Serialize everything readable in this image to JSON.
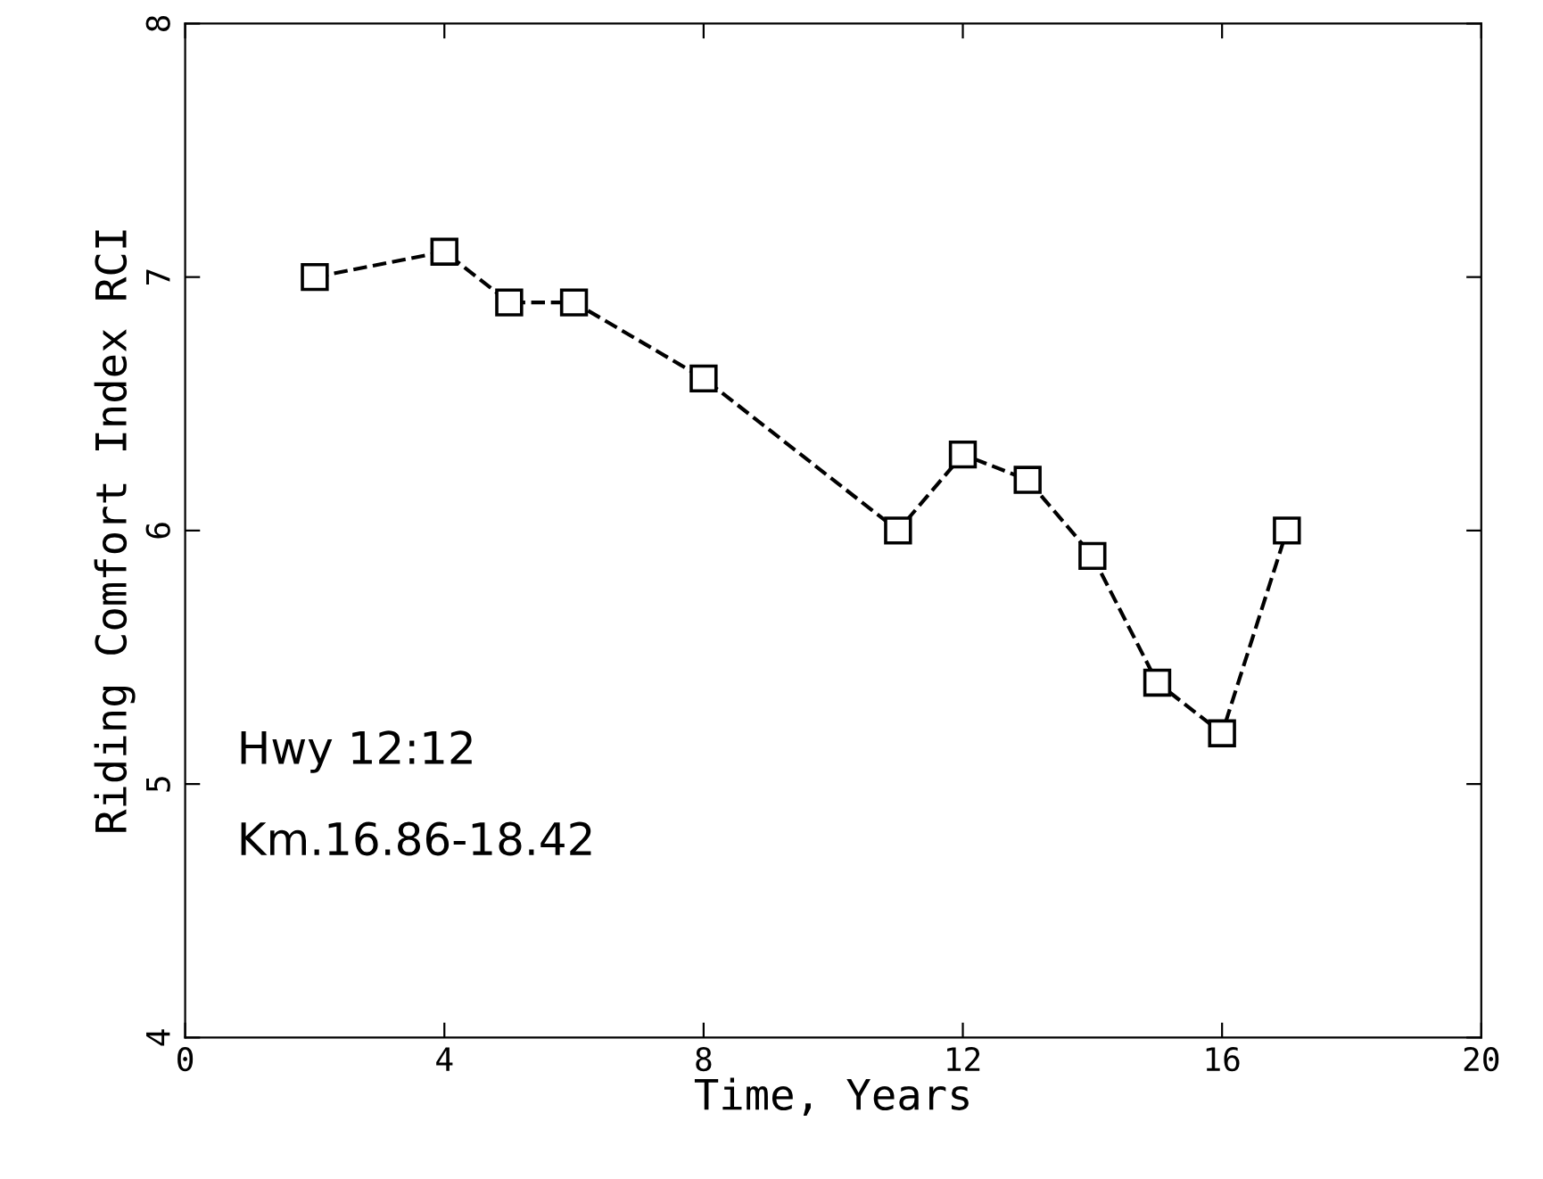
{
  "chart_data": {
    "type": "line",
    "xlabel": "Time, Years",
    "ylabel": "Riding Comfort Index RCI",
    "x": [
      2,
      4,
      5,
      6,
      8,
      11,
      12,
      13,
      14,
      15,
      16,
      17
    ],
    "series": [
      {
        "color": "#000000",
        "values": [
          7.0,
          7.1,
          6.9,
          6.9,
          6.6,
          6.0,
          6.3,
          6.2,
          5.9,
          5.4,
          5.2,
          6.0
        ]
      }
    ],
    "xlim": [
      0,
      20
    ],
    "xticks": [
      0,
      4,
      8,
      12,
      16,
      20
    ],
    "ylim": [
      4,
      8
    ],
    "yticks": [
      4,
      5,
      6,
      7,
      8
    ],
    "annotations": [
      "Hwy 12:12",
      "Km.16.86-18.42"
    ],
    "marker": "square",
    "line_style": "dashed",
    "grid": false,
    "legend": false
  }
}
